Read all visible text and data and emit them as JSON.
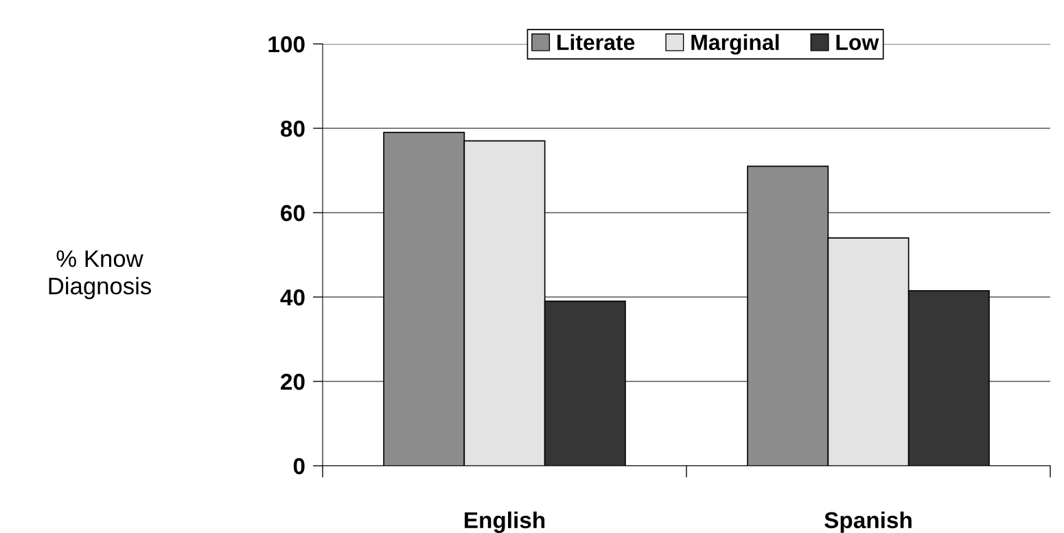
{
  "chart_data": {
    "type": "bar",
    "ylabel": "% Know\nDiagnosis",
    "categories": [
      "English",
      "Spanish"
    ],
    "series": [
      {
        "name": "Literate",
        "color": "#8c8c8c",
        "values": [
          79,
          71
        ]
      },
      {
        "name": "Marginal",
        "color": "#e3e3e3",
        "values": [
          77,
          54
        ]
      },
      {
        "name": "Low",
        "color": "#363636",
        "values": [
          39,
          41.5
        ]
      }
    ],
    "ylim": [
      0,
      100
    ],
    "yticks": [
      0,
      20,
      40,
      60,
      80,
      100
    ],
    "grid": "y",
    "legend": "top"
  }
}
